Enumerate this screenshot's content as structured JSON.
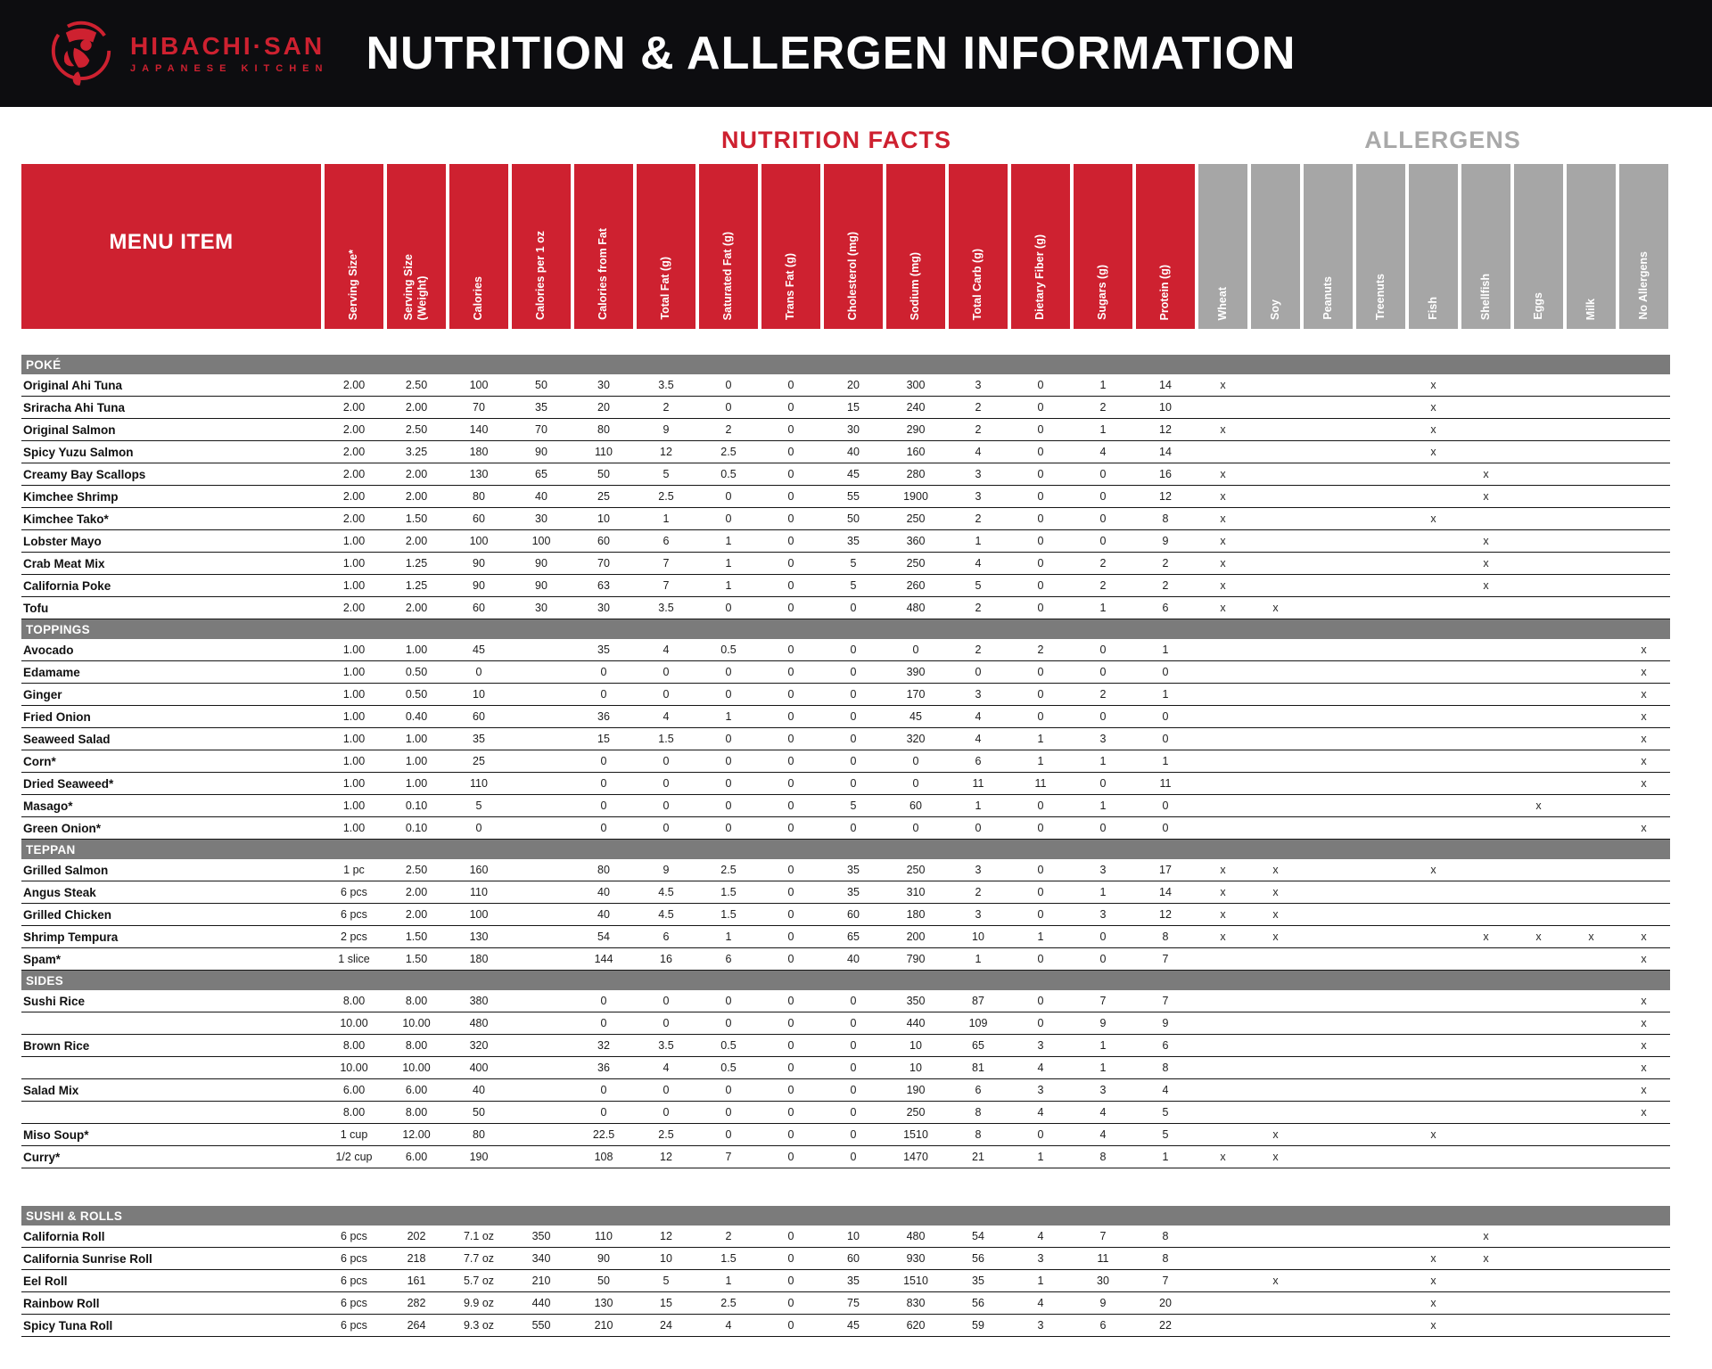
{
  "header": {
    "brand_name": "HIBACHI·SAN",
    "brand_tagline": "JAPANESE KITCHEN",
    "title": "NUTRITION & ALLERGEN INFORMATION"
  },
  "group_titles": {
    "nutrition": "NUTRITION FACTS",
    "allergens": "ALLERGENS"
  },
  "columns": {
    "menu": "MENU ITEM",
    "nutrition": [
      "Serving Size*",
      "Serving Size\n(Weight)",
      "Calories",
      "Calories per 1 oz",
      "Calories from Fat",
      "Total Fat (g)",
      "Saturated Fat (g)",
      "Trans Fat (g)",
      "Cholesterol (mg)",
      "Sodium (mg)",
      "Total Carb (g)",
      "Dietary Fiber (g)",
      "Sugars (g)",
      "Protein (g)"
    ],
    "allergens": [
      {
        "label": "Wheat",
        "key": "wheat"
      },
      {
        "label": "Soy",
        "key": "soy"
      },
      {
        "label": "Peanuts",
        "key": "peanuts"
      },
      {
        "label": "Treenuts",
        "key": "treenuts"
      },
      {
        "label": "Fish",
        "key": "fish"
      },
      {
        "label": "Shellfish",
        "key": "shellfish"
      },
      {
        "label": "Eggs",
        "key": "eggs"
      },
      {
        "label": "Milk",
        "key": "milk"
      },
      {
        "label": "No Allergens",
        "key": "none"
      }
    ]
  },
  "allergen_mark": "x",
  "colors": {
    "accent_red": "#ce2130",
    "header_black": "#0d0d10",
    "allergen_gray": "#a6a6a6",
    "band_gray": "#7b7b7b"
  },
  "sections": [
    {
      "name": "POKÉ",
      "rows": [
        {
          "item": "Original Ahi Tuna",
          "values": [
            "2.00",
            "2.50",
            "100",
            "50",
            "30",
            "3.5",
            "0",
            "0",
            "20",
            "300",
            "3",
            "0",
            "1",
            "14"
          ],
          "allergens": [
            "wheat",
            "fish"
          ]
        },
        {
          "item": "Sriracha Ahi Tuna",
          "values": [
            "2.00",
            "2.00",
            "70",
            "35",
            "20",
            "2",
            "0",
            "0",
            "15",
            "240",
            "2",
            "0",
            "2",
            "10"
          ],
          "allergens": [
            "fish"
          ]
        },
        {
          "item": "Original Salmon",
          "values": [
            "2.00",
            "2.50",
            "140",
            "70",
            "80",
            "9",
            "2",
            "0",
            "30",
            "290",
            "2",
            "0",
            "1",
            "12"
          ],
          "allergens": [
            "wheat",
            "fish"
          ]
        },
        {
          "item": "Spicy Yuzu Salmon",
          "values": [
            "2.00",
            "3.25",
            "180",
            "90",
            "110",
            "12",
            "2.5",
            "0",
            "40",
            "160",
            "4",
            "0",
            "4",
            "14"
          ],
          "allergens": [
            "fish"
          ]
        },
        {
          "item": "Creamy Bay Scallops",
          "values": [
            "2.00",
            "2.00",
            "130",
            "65",
            "50",
            "5",
            "0.5",
            "0",
            "45",
            "280",
            "3",
            "0",
            "0",
            "16"
          ],
          "allergens": [
            "wheat",
            "shellfish"
          ]
        },
        {
          "item": "Kimchee Shrimp",
          "values": [
            "2.00",
            "2.00",
            "80",
            "40",
            "25",
            "2.5",
            "0",
            "0",
            "55",
            "1900",
            "3",
            "0",
            "0",
            "12"
          ],
          "allergens": [
            "wheat",
            "shellfish"
          ]
        },
        {
          "item": "Kimchee Tako*",
          "values": [
            "2.00",
            "1.50",
            "60",
            "30",
            "10",
            "1",
            "0",
            "0",
            "50",
            "250",
            "2",
            "0",
            "0",
            "8"
          ],
          "allergens": [
            "wheat",
            "fish"
          ]
        },
        {
          "item": "Lobster Mayo",
          "values": [
            "1.00",
            "2.00",
            "100",
            "100",
            "60",
            "6",
            "1",
            "0",
            "35",
            "360",
            "1",
            "0",
            "0",
            "9"
          ],
          "allergens": [
            "wheat",
            "shellfish"
          ]
        },
        {
          "item": "Crab Meat Mix",
          "values": [
            "1.00",
            "1.25",
            "90",
            "90",
            "70",
            "7",
            "1",
            "0",
            "5",
            "250",
            "4",
            "0",
            "2",
            "2"
          ],
          "allergens": [
            "wheat",
            "shellfish"
          ]
        },
        {
          "item": "California Poke",
          "values": [
            "1.00",
            "1.25",
            "90",
            "90",
            "63",
            "7",
            "1",
            "0",
            "5",
            "260",
            "5",
            "0",
            "2",
            "2"
          ],
          "allergens": [
            "wheat",
            "shellfish"
          ]
        },
        {
          "item": "Tofu",
          "values": [
            "2.00",
            "2.00",
            "60",
            "30",
            "30",
            "3.5",
            "0",
            "0",
            "0",
            "480",
            "2",
            "0",
            "1",
            "6"
          ],
          "allergens": [
            "wheat",
            "soy"
          ]
        }
      ]
    },
    {
      "name": "TOPPINGS",
      "rows": [
        {
          "item": "Avocado",
          "values": [
            "1.00",
            "1.00",
            "45",
            "",
            "35",
            "4",
            "0.5",
            "0",
            "0",
            "0",
            "2",
            "2",
            "0",
            "1"
          ],
          "allergens": [
            "none"
          ]
        },
        {
          "item": "Edamame",
          "values": [
            "1.00",
            "0.50",
            "0",
            "",
            "0",
            "0",
            "0",
            "0",
            "0",
            "390",
            "0",
            "0",
            "0",
            "0"
          ],
          "allergens": [
            "none"
          ]
        },
        {
          "item": "Ginger",
          "values": [
            "1.00",
            "0.50",
            "10",
            "",
            "0",
            "0",
            "0",
            "0",
            "0",
            "170",
            "3",
            "0",
            "2",
            "1"
          ],
          "allergens": [
            "none"
          ]
        },
        {
          "item": "Fried Onion",
          "values": [
            "1.00",
            "0.40",
            "60",
            "",
            "36",
            "4",
            "1",
            "0",
            "0",
            "45",
            "4",
            "0",
            "0",
            "0"
          ],
          "allergens": [
            "none"
          ]
        },
        {
          "item": "Seaweed Salad",
          "values": [
            "1.00",
            "1.00",
            "35",
            "",
            "15",
            "1.5",
            "0",
            "0",
            "0",
            "320",
            "4",
            "1",
            "3",
            "0"
          ],
          "allergens": [
            "none"
          ]
        },
        {
          "item": "Corn*",
          "values": [
            "1.00",
            "1.00",
            "25",
            "",
            "0",
            "0",
            "0",
            "0",
            "0",
            "0",
            "6",
            "1",
            "1",
            "1"
          ],
          "allergens": [
            "none"
          ]
        },
        {
          "item": "Dried Seaweed*",
          "values": [
            "1.00",
            "1.00",
            "110",
            "",
            "0",
            "0",
            "0",
            "0",
            "0",
            "0",
            "11",
            "11",
            "0",
            "11"
          ],
          "allergens": [
            "none"
          ]
        },
        {
          "item": "Masago*",
          "values": [
            "1.00",
            "0.10",
            "5",
            "",
            "0",
            "0",
            "0",
            "0",
            "5",
            "60",
            "1",
            "0",
            "1",
            "0"
          ],
          "allergens": [
            "eggs"
          ]
        },
        {
          "item": "Green Onion*",
          "values": [
            "1.00",
            "0.10",
            "0",
            "",
            "0",
            "0",
            "0",
            "0",
            "0",
            "0",
            "0",
            "0",
            "0",
            "0"
          ],
          "allergens": [
            "none"
          ]
        }
      ]
    },
    {
      "name": "TEPPAN",
      "rows": [
        {
          "item": "Grilled Salmon",
          "values": [
            "1 pc",
            "2.50",
            "160",
            "",
            "80",
            "9",
            "2.5",
            "0",
            "35",
            "250",
            "3",
            "0",
            "3",
            "17"
          ],
          "allergens": [
            "wheat",
            "soy",
            "fish"
          ]
        },
        {
          "item": "Angus Steak",
          "values": [
            "6 pcs",
            "2.00",
            "110",
            "",
            "40",
            "4.5",
            "1.5",
            "0",
            "35",
            "310",
            "2",
            "0",
            "1",
            "14"
          ],
          "allergens": [
            "wheat",
            "soy"
          ]
        },
        {
          "item": "Grilled Chicken",
          "values": [
            "6 pcs",
            "2.00",
            "100",
            "",
            "40",
            "4.5",
            "1.5",
            "0",
            "60",
            "180",
            "3",
            "0",
            "3",
            "12"
          ],
          "allergens": [
            "wheat",
            "soy"
          ]
        },
        {
          "item": "Shrimp Tempura",
          "values": [
            "2 pcs",
            "1.50",
            "130",
            "",
            "54",
            "6",
            "1",
            "0",
            "65",
            "200",
            "10",
            "1",
            "0",
            "8"
          ],
          "allergens": [
            "wheat",
            "soy",
            "shellfish",
            "eggs",
            "milk",
            "none"
          ]
        },
        {
          "item": "Spam*",
          "values": [
            "1 slice",
            "1.50",
            "180",
            "",
            "144",
            "16",
            "6",
            "0",
            "40",
            "790",
            "1",
            "0",
            "0",
            "7"
          ],
          "allergens": [
            "none"
          ]
        }
      ]
    },
    {
      "name": "SIDES",
      "rows": [
        {
          "item": "Sushi Rice",
          "values": [
            "8.00",
            "8.00",
            "380",
            "",
            "0",
            "0",
            "0",
            "0",
            "0",
            "350",
            "87",
            "0",
            "7",
            "7"
          ],
          "allergens": [
            "none"
          ]
        },
        {
          "item": "",
          "values": [
            "10.00",
            "10.00",
            "480",
            "",
            "0",
            "0",
            "0",
            "0",
            "0",
            "440",
            "109",
            "0",
            "9",
            "9"
          ],
          "allergens": [
            "none"
          ]
        },
        {
          "item": "Brown Rice",
          "values": [
            "8.00",
            "8.00",
            "320",
            "",
            "32",
            "3.5",
            "0.5",
            "0",
            "0",
            "10",
            "65",
            "3",
            "1",
            "6"
          ],
          "allergens": [
            "none"
          ]
        },
        {
          "item": "",
          "values": [
            "10.00",
            "10.00",
            "400",
            "",
            "36",
            "4",
            "0.5",
            "0",
            "0",
            "10",
            "81",
            "4",
            "1",
            "8"
          ],
          "allergens": [
            "none"
          ]
        },
        {
          "item": "Salad Mix",
          "values": [
            "6.00",
            "6.00",
            "40",
            "",
            "0",
            "0",
            "0",
            "0",
            "0",
            "190",
            "6",
            "3",
            "3",
            "4"
          ],
          "allergens": [
            "none"
          ]
        },
        {
          "item": "",
          "values": [
            "8.00",
            "8.00",
            "50",
            "",
            "0",
            "0",
            "0",
            "0",
            "0",
            "250",
            "8",
            "4",
            "4",
            "5"
          ],
          "allergens": [
            "none"
          ]
        },
        {
          "item": "Miso Soup*",
          "values": [
            "1 cup",
            "12.00",
            "80",
            "",
            "22.5",
            "2.5",
            "0",
            "0",
            "0",
            "1510",
            "8",
            "0",
            "4",
            "5"
          ],
          "allergens": [
            "soy",
            "fish"
          ]
        },
        {
          "item": "Curry*",
          "values": [
            "1/2 cup",
            "6.00",
            "190",
            "",
            "108",
            "12",
            "7",
            "0",
            "0",
            "1470",
            "21",
            "1",
            "8",
            "1"
          ],
          "allergens": [
            "wheat",
            "soy"
          ]
        }
      ]
    },
    {
      "name": "SUSHI & ROLLS",
      "gap_before": true,
      "rows": [
        {
          "item": "California Roll",
          "values": [
            "6 pcs",
            "202",
            "7.1 oz",
            "350",
            "110",
            "12",
            "2",
            "0",
            "10",
            "480",
            "54",
            "4",
            "7",
            "8"
          ],
          "allergens": [
            "shellfish"
          ]
        },
        {
          "item": "California Sunrise Roll",
          "values": [
            "6 pcs",
            "218",
            "7.7 oz",
            "340",
            "90",
            "10",
            "1.5",
            "0",
            "60",
            "930",
            "56",
            "3",
            "11",
            "8"
          ],
          "allergens": [
            "fish",
            "shellfish"
          ]
        },
        {
          "item": "Eel Roll",
          "values": [
            "6 pcs",
            "161",
            "5.7 oz",
            "210",
            "50",
            "5",
            "1",
            "0",
            "35",
            "1510",
            "35",
            "1",
            "30",
            "7"
          ],
          "allergens": [
            "soy",
            "fish"
          ]
        },
        {
          "item": "Rainbow Roll",
          "values": [
            "6 pcs",
            "282",
            "9.9 oz",
            "440",
            "130",
            "15",
            "2.5",
            "0",
            "75",
            "830",
            "56",
            "4",
            "9",
            "20"
          ],
          "allergens": [
            "fish"
          ]
        },
        {
          "item": "Spicy Tuna Roll",
          "values": [
            "6 pcs",
            "264",
            "9.3 oz",
            "550",
            "210",
            "24",
            "4",
            "0",
            "45",
            "620",
            "59",
            "3",
            "6",
            "22"
          ],
          "allergens": [
            "fish"
          ]
        }
      ]
    }
  ]
}
